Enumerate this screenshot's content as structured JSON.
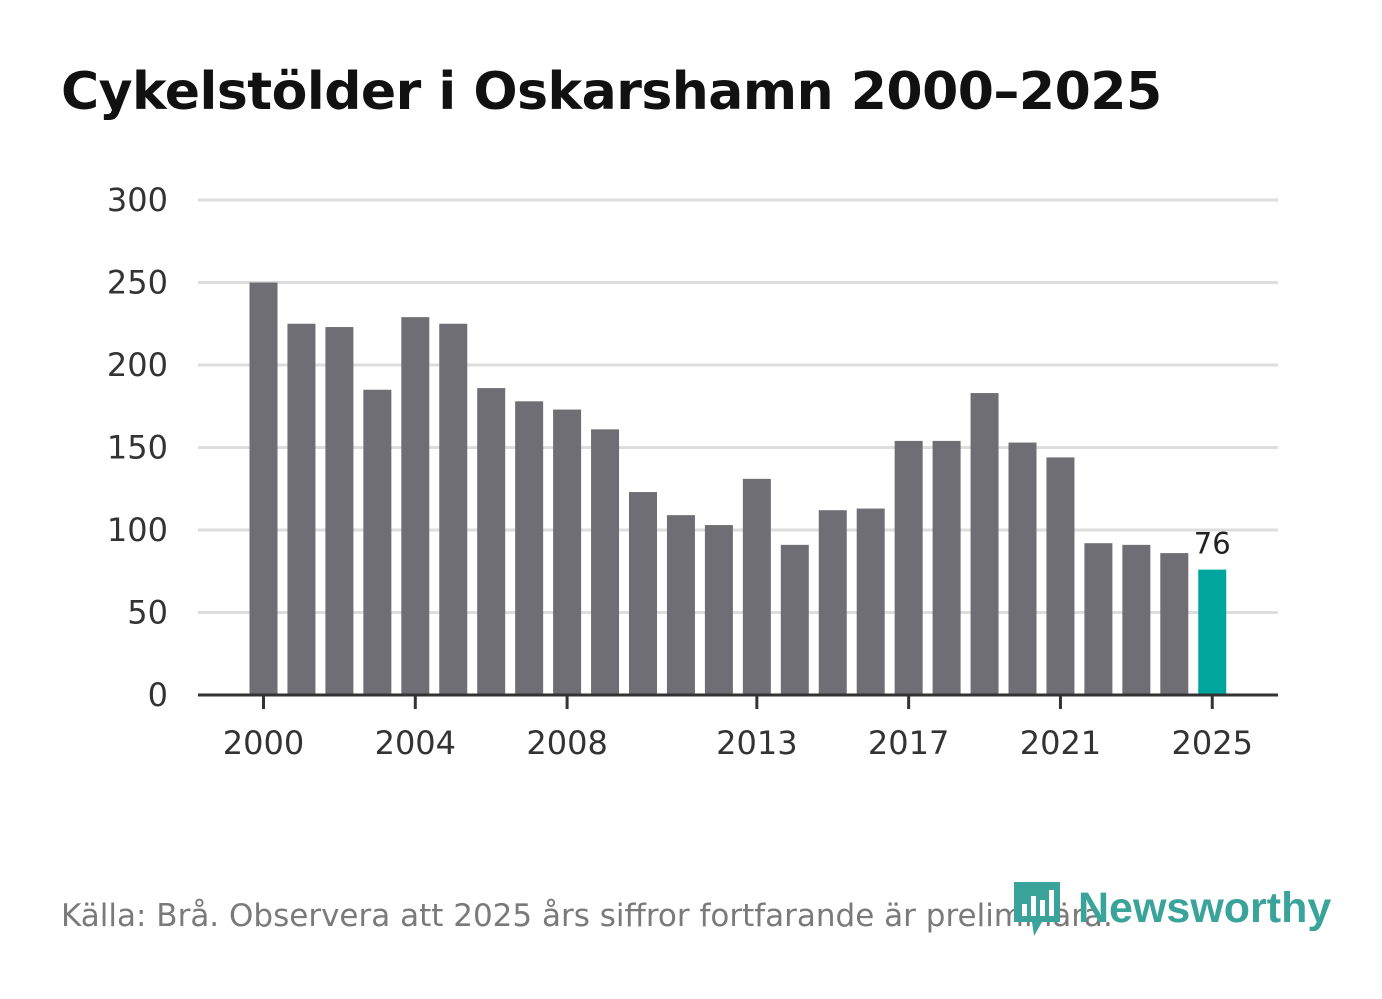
{
  "colors": {
    "bar": "#6f6e75",
    "highlight": "#00a69d",
    "grid": "#dddddd",
    "axis": "#333333",
    "logo": "#3aa39a"
  },
  "chart_data": {
    "type": "bar",
    "title": "Cykelstölder i Oskarshamn 2000–2025",
    "xlabel": "",
    "ylabel": "",
    "ylim": [
      0,
      300
    ],
    "yticks": [
      0,
      50,
      100,
      150,
      200,
      250,
      300
    ],
    "xtick_labels": [
      "2000",
      "2004",
      "2008",
      "2013",
      "2017",
      "2021",
      "2025"
    ],
    "categories": [
      "2000",
      "2001",
      "2002",
      "2003",
      "2004",
      "2005",
      "2006",
      "2007",
      "2008",
      "2009",
      "2010",
      "2011",
      "2012",
      "2013",
      "2014",
      "2015",
      "2016",
      "2017",
      "2018",
      "2019",
      "2020",
      "2021",
      "2022",
      "2023",
      "2024",
      "2025"
    ],
    "values": [
      250,
      225,
      223,
      185,
      229,
      225,
      186,
      178,
      173,
      161,
      123,
      109,
      103,
      131,
      91,
      112,
      113,
      154,
      154,
      183,
      153,
      144,
      92,
      91,
      86,
      76
    ],
    "highlight_category": "2025",
    "highlight_label": "76",
    "grid": true
  },
  "footer": {
    "source": "Källa: Brå. Observera att 2025 års siffror fortfarande är preliminära."
  },
  "logo": {
    "text": "Newsworthy",
    "icon": "newsworthy-bar-icon"
  }
}
